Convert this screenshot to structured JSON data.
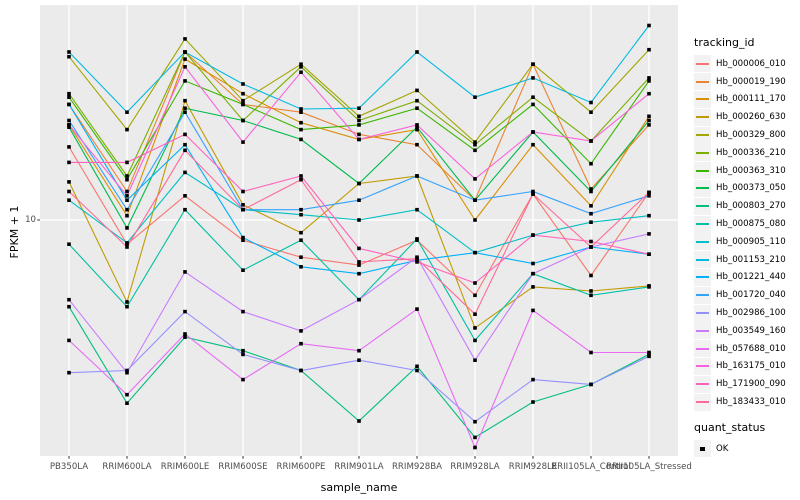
{
  "figure": {
    "background": "#FFFFFF",
    "panel_background": "#EBEBEB",
    "grid_color": "#FFFFFF",
    "tick_mark_color": "#333333",
    "tick_label_color": "#4D4D4D",
    "title_color": "#000000",
    "point_color": "#000000",
    "legend_key_background": "#F2F2F2"
  },
  "chart_data": {
    "type": "line",
    "title": "",
    "xlabel": "sample_name",
    "ylabel": "FPKM + 1",
    "y_scale": "log10",
    "y_tick_labels": [
      "10"
    ],
    "y_tick_values": [
      10
    ],
    "ylim": [
      1.15,
      71
    ],
    "grid": true,
    "legend_position": "right",
    "point_marker": "black-square",
    "categories": [
      "PB350LA",
      "RRIM600LA",
      "RRIM600LE",
      "RRIM600SE",
      "RRIM600PE",
      "RRIM901LA",
      "RRIM928BA",
      "RRIM928LA",
      "RRIM928LE",
      "RRII105LA_Control",
      "RRII105LA_Stressed"
    ],
    "series": [
      {
        "name": "Hb_000006_010",
        "color": "#F8766D",
        "values": [
          19.6,
          8.0,
          12.5,
          8.3,
          7.1,
          6.6,
          8.3,
          5.0,
          12.7,
          6.0,
          12.9
        ]
      },
      {
        "name": "Hb_000019_190",
        "color": "#EA8331",
        "values": [
          29,
          13,
          47,
          29,
          27,
          22,
          20,
          12,
          42,
          13.3,
          24
        ]
      },
      {
        "name": "Hb_000111_170",
        "color": "#D89000",
        "values": [
          24,
          10.4,
          44,
          32,
          24.5,
          21,
          23,
          10,
          20,
          11.4,
          26
        ]
      },
      {
        "name": "Hb_000260_630",
        "color": "#C09B00",
        "values": [
          14.2,
          4.7,
          30,
          11.5,
          8.9,
          14,
          15,
          3.7,
          5.4,
          5.2,
          5.45
        ]
      },
      {
        "name": "Hb_000329_800",
        "color": "#A3A500",
        "values": [
          45,
          23,
          53,
          30,
          42,
          26,
          33,
          20.5,
          42,
          27,
          48
        ]
      },
      {
        "name": "Hb_000336_210",
        "color": "#7CAE00",
        "values": [
          32,
          15,
          47,
          25,
          41,
          25,
          30,
          20,
          31,
          20.7,
          37
        ]
      },
      {
        "name": "Hb_000363_310",
        "color": "#39B600",
        "values": [
          31,
          14.5,
          36,
          29,
          23,
          24,
          28,
          19,
          29,
          16.8,
          36
        ]
      },
      {
        "name": "Hb_000373_050",
        "color": "#00BB4E",
        "values": [
          23.5,
          9.3,
          28,
          25,
          21,
          14,
          23.5,
          12,
          22.5,
          13,
          25
        ]
      },
      {
        "name": "Hb_000803_270",
        "color": "#00BF7D",
        "values": [
          4.5,
          1.85,
          3.4,
          3.0,
          2.5,
          1.57,
          2.6,
          1.35,
          1.87,
          2.2,
          2.9
        ]
      },
      {
        "name": "Hb_000875_080",
        "color": "#00C1A3",
        "values": [
          8.0,
          4.5,
          11,
          6.3,
          8.3,
          4.8,
          8.4,
          3.3,
          6.1,
          5.0,
          5.4
        ]
      },
      {
        "name": "Hb_000905_110",
        "color": "#00BFC4",
        "values": [
          12,
          8.1,
          15.5,
          11,
          10.5,
          10,
          11,
          7.4,
          8.7,
          9.8,
          10.4
        ]
      },
      {
        "name": "Hb_001153_210",
        "color": "#00BAE0",
        "values": [
          47,
          27,
          47,
          35,
          27.8,
          28,
          47,
          31,
          37,
          29.5,
          60
        ]
      },
      {
        "name": "Hb_001221_440",
        "color": "#00B0F6",
        "values": [
          29,
          12,
          20,
          8.5,
          6.5,
          6.1,
          6.9,
          7.4,
          6.7,
          7.8,
          7.3
        ]
      },
      {
        "name": "Hb_001720_040",
        "color": "#35A2FF",
        "values": [
          25,
          11,
          27,
          11,
          11,
          12,
          15,
          12,
          13,
          10.6,
          12.5
        ]
      },
      {
        "name": "Hb_002986_100",
        "color": "#9590FF",
        "values": [
          2.45,
          2.5,
          4.3,
          2.9,
          2.5,
          2.75,
          2.5,
          1.56,
          2.3,
          2.2,
          2.85
        ]
      },
      {
        "name": "Hb_003549_160",
        "color": "#C77CFF",
        "values": [
          4.8,
          2.45,
          6.2,
          4.3,
          3.6,
          4.8,
          7.1,
          2.75,
          6.1,
          7.8,
          8.8
        ]
      },
      {
        "name": "Hb_057688_010",
        "color": "#E76BF3",
        "values": [
          3.3,
          2.0,
          3.5,
          2.3,
          3.2,
          3.0,
          4.4,
          1.23,
          4.35,
          2.95,
          2.95
        ]
      },
      {
        "name": "Hb_163175_010",
        "color": "#FA62DB",
        "values": [
          24,
          12.5,
          41,
          20.5,
          39,
          21,
          24,
          14.6,
          22.5,
          20.7,
          32
        ]
      },
      {
        "name": "Hb_171900_090",
        "color": "#FF62BC",
        "values": [
          17,
          17,
          22,
          13,
          15,
          7.7,
          6.8,
          5.6,
          8.7,
          8.2,
          7.3
        ]
      },
      {
        "name": "Hb_183433_010",
        "color": "#FF6A98",
        "values": [
          13,
          7.8,
          19,
          11,
          14.5,
          6.8,
          7.0,
          4.2,
          12.7,
          7.8,
          12.9
        ]
      }
    ],
    "legend": {
      "tracking_title": "tracking_id",
      "quant_title": "quant_status",
      "quant_entries": [
        {
          "label": "OK",
          "marker": "black-square"
        }
      ]
    }
  }
}
